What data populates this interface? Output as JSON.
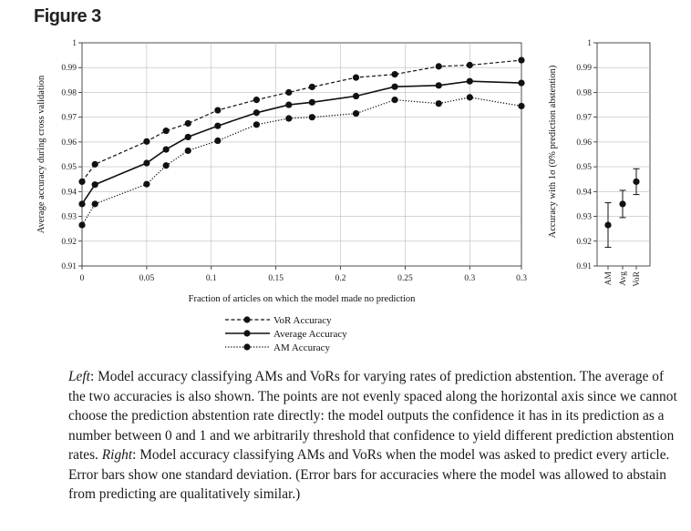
{
  "figure_title": "Figure 3",
  "chart_data": [
    {
      "type": "line",
      "xlabel": "Fraction of articles on which the model made no prediction",
      "ylabel": "Average accuracy during cross validation",
      "xlim": [
        0,
        0.34
      ],
      "ylim": [
        0.91,
        1.0
      ],
      "xticks": [
        "0",
        "0.05",
        "0.1",
        "0.15",
        "0.2",
        "0.25",
        "0.3",
        "0.3"
      ],
      "yticks": [
        "0.91",
        "0.92",
        "0.93",
        "0.94",
        "0.95",
        "0.96",
        "0.97",
        "0.98",
        "0.99",
        "1"
      ],
      "legend_placement": "bottom",
      "series": [
        {
          "name": "VoR Accuracy",
          "style": "dashed",
          "x": [
            0,
            0.01,
            0.05,
            0.065,
            0.082,
            0.105,
            0.135,
            0.16,
            0.178,
            0.212,
            0.242,
            0.276,
            0.3,
            0.34
          ],
          "y": [
            0.944,
            0.951,
            0.9602,
            0.9645,
            0.9675,
            0.9728,
            0.977,
            0.98,
            0.9822,
            0.986,
            0.9873,
            0.9905,
            0.991,
            0.993
          ]
        },
        {
          "name": "Average Accuracy",
          "style": "solid",
          "x": [
            0,
            0.01,
            0.05,
            0.065,
            0.082,
            0.105,
            0.135,
            0.16,
            0.178,
            0.212,
            0.242,
            0.276,
            0.3,
            0.34
          ],
          "y": [
            0.935,
            0.9428,
            0.9515,
            0.957,
            0.962,
            0.9665,
            0.9718,
            0.975,
            0.976,
            0.9785,
            0.9823,
            0.9828,
            0.9845,
            0.9838
          ]
        },
        {
          "name": "AM Accuracy",
          "style": "dotted",
          "x": [
            0,
            0.01,
            0.05,
            0.065,
            0.082,
            0.105,
            0.135,
            0.16,
            0.178,
            0.212,
            0.242,
            0.276,
            0.3,
            0.34
          ],
          "y": [
            0.9265,
            0.935,
            0.943,
            0.9505,
            0.9565,
            0.9605,
            0.967,
            0.9695,
            0.97,
            0.9715,
            0.977,
            0.9755,
            0.978,
            0.9745
          ]
        }
      ]
    },
    {
      "type": "scatter",
      "ylabel": "Accuracy with 1σ (0% prediction abstention)",
      "ylim": [
        0.91,
        1.0
      ],
      "yticks": [
        "0.91",
        "0.92",
        "0.93",
        "0.94",
        "0.95",
        "0.96",
        "0.97",
        "0.98",
        "0.99",
        "1"
      ],
      "categories": [
        "AM",
        "Avg",
        "VoR"
      ],
      "values": [
        0.9265,
        0.935,
        0.944
      ],
      "error_sd": [
        0.009,
        0.0055,
        0.0052
      ]
    }
  ],
  "caption": {
    "left_label": "Left",
    "left_text": ": Model accuracy classifying AMs and VoRs for varying rates of prediction abstention. The average of the two accuracies is also shown. The points are not evenly spaced along the horizontal axis since we cannot choose the prediction abstention rate directly: the model outputs the confidence it has in its prediction as a number between 0 and 1 and we arbitrarily threshold that confidence to yield different prediction abstention rates.",
    "right_label": "Right",
    "right_text": ": Model accuracy classifying AMs and VoRs when the model was asked to predict every article. Error bars show one standard deviation. (Error bars for accuracies where the model was allowed to abstain from predicting are qualitatively similar.)"
  }
}
